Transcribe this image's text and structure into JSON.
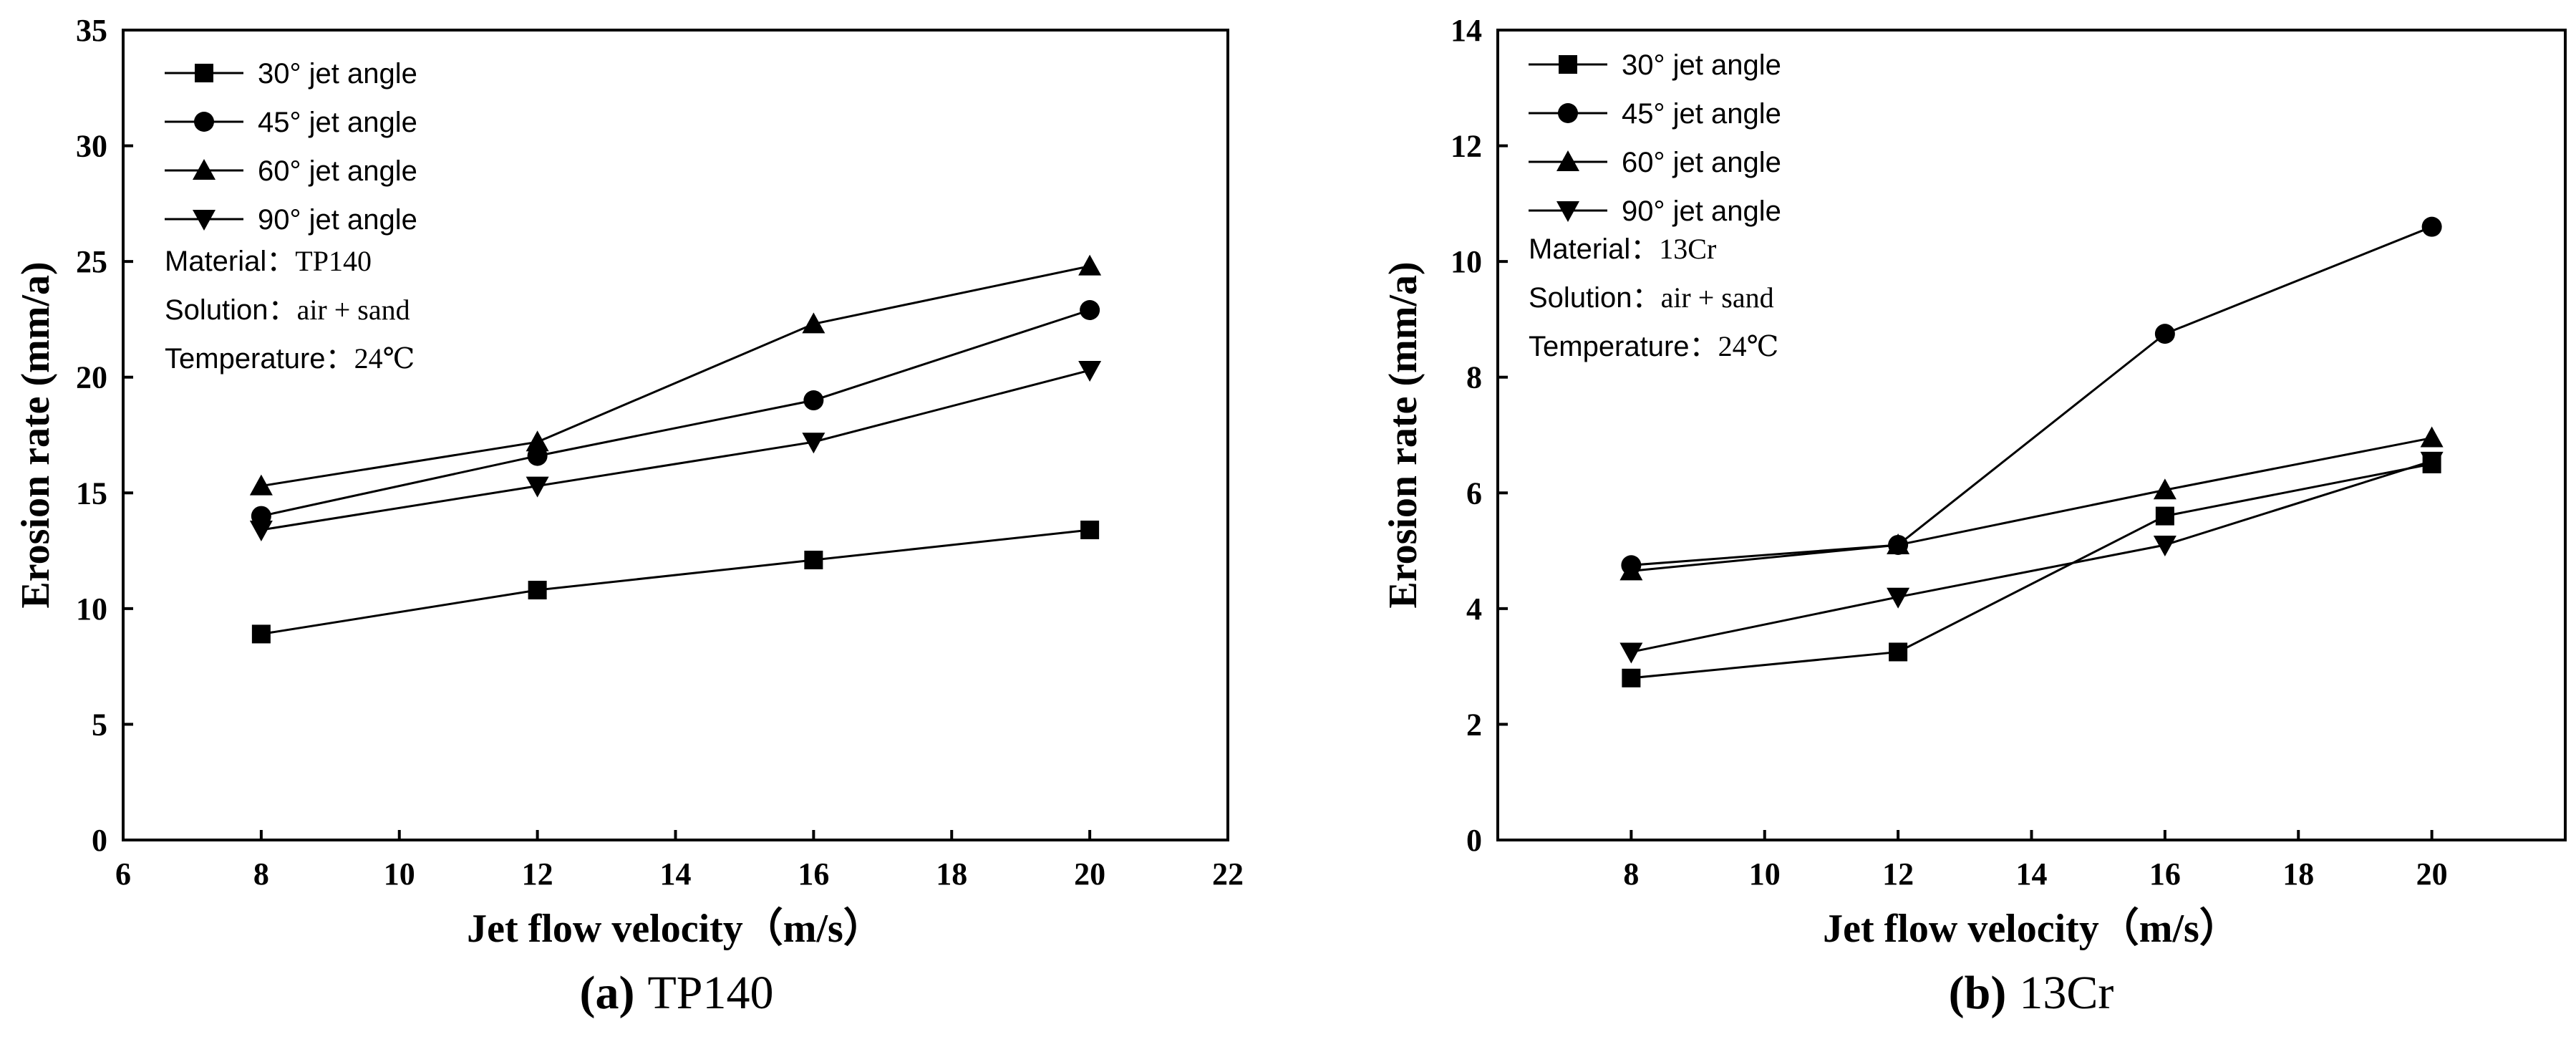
{
  "chart_data": [
    {
      "type": "line",
      "panel": "a",
      "caption_letter": "(a)",
      "caption_text": "TP140",
      "xlabel": "Jet flow velocity（m/s）",
      "ylabel": "Erosion rate (mm/a)",
      "xlim": [
        6,
        22
      ],
      "ylim": [
        0,
        35
      ],
      "xticks": [
        6,
        8,
        10,
        12,
        14,
        16,
        18,
        20,
        22
      ],
      "yticks": [
        0,
        5,
        10,
        15,
        20,
        25,
        30,
        35
      ],
      "x": [
        8,
        12,
        16,
        20
      ],
      "series": [
        {
          "name": "30° jet angle",
          "marker": "square",
          "values": [
            8.9,
            10.8,
            12.1,
            13.4
          ]
        },
        {
          "name": "45° jet angle",
          "marker": "circle",
          "values": [
            14.0,
            16.6,
            19.0,
            22.9
          ]
        },
        {
          "name": "60° jet angle",
          "marker": "triangle-up",
          "values": [
            15.3,
            17.2,
            22.3,
            24.8
          ]
        },
        {
          "name": "90° jet angle",
          "marker": "triangle-down",
          "values": [
            13.4,
            15.3,
            17.2,
            20.3
          ]
        }
      ],
      "annotations": [
        {
          "label": "Material：",
          "value": "TP140"
        },
        {
          "label": "Solution：",
          "value": "air + sand"
        },
        {
          "label": "Temperature：",
          "value": "24℃"
        }
      ]
    },
    {
      "type": "line",
      "panel": "b",
      "caption_letter": "(b)",
      "caption_text": "13Cr",
      "xlabel": "Jet flow velocity（m/s）",
      "ylabel": "Erosion rate (mm/a)",
      "xlim": [
        6,
        22
      ],
      "ylim": [
        0,
        14
      ],
      "xticks": [
        8,
        10,
        12,
        14,
        16,
        18,
        20
      ],
      "yticks": [
        0,
        2,
        4,
        6,
        8,
        10,
        12,
        14
      ],
      "x": [
        8,
        12,
        16,
        20
      ],
      "series": [
        {
          "name": "30° jet angle",
          "marker": "square",
          "values": [
            2.8,
            3.25,
            5.6,
            6.5
          ]
        },
        {
          "name": "45° jet angle",
          "marker": "circle",
          "values": [
            4.75,
            5.1,
            8.75,
            10.6
          ]
        },
        {
          "name": "60° jet angle",
          "marker": "triangle-up",
          "values": [
            4.65,
            5.1,
            6.05,
            6.95
          ]
        },
        {
          "name": "90° jet angle",
          "marker": "triangle-down",
          "values": [
            3.25,
            4.2,
            5.1,
            6.55
          ]
        }
      ],
      "annotations": [
        {
          "label": "Material：",
          "value": "13Cr"
        },
        {
          "label": "Solution：",
          "value": "air + sand"
        },
        {
          "label": "Temperature：",
          "value": "24℃"
        }
      ]
    }
  ]
}
